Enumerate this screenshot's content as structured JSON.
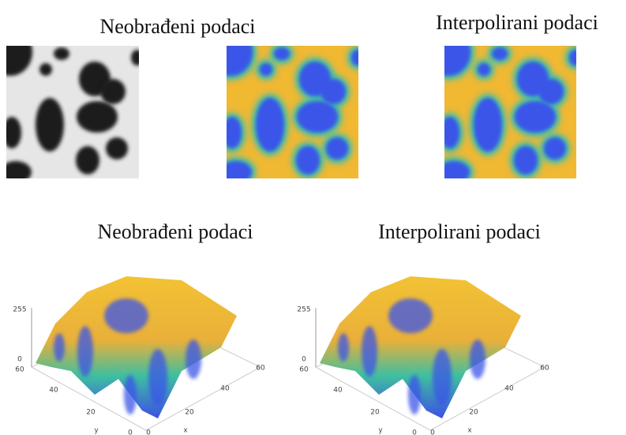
{
  "top": {
    "titles": [
      "Neobrađeni podaci",
      "Interpolirani podaci"
    ]
  },
  "plots": [
    {
      "title": "Neobrađeni podaci",
      "zticks": [
        0,
        255
      ],
      "yticks": [
        0,
        20,
        40,
        60
      ],
      "xticks": [
        0,
        20,
        40,
        60
      ],
      "xlabel": "x",
      "ylabel": "y"
    },
    {
      "title": "Interpolirani podaci",
      "zticks": [
        0,
        255
      ],
      "yticks": [
        0,
        20,
        40,
        60
      ],
      "xticks": [
        0,
        20,
        40,
        60
      ],
      "xlabel": "x",
      "ylabel": "y"
    }
  ]
}
